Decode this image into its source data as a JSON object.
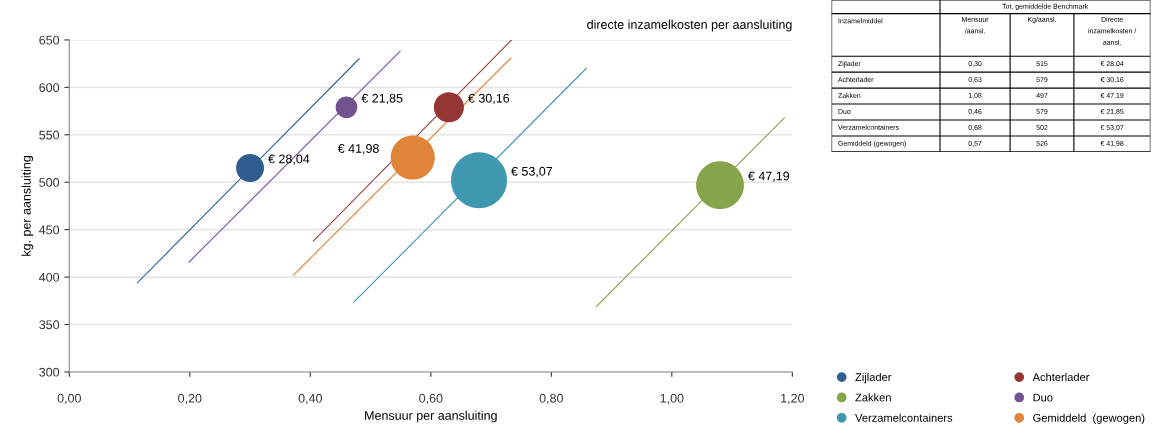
{
  "chart_data": [
    {
      "type": "bubble",
      "title": "directe inzamelkosten per aansluiting",
      "xlabel": "Mensuur per aansluiting",
      "ylabel": "kg. per aansluiting",
      "xlim": [
        0,
        1.2
      ],
      "xticks": [
        {
          "value": 0,
          "label": "0,00"
        },
        {
          "value": 0.2,
          "label": "0,20"
        },
        {
          "value": 0.4,
          "label": "0,40"
        },
        {
          "value": 0.6,
          "label": "0,60"
        },
        {
          "value": 0.8,
          "label": "0,80"
        },
        {
          "value": 1.0,
          "label": "1,00"
        },
        {
          "value": 1.2,
          "label": "1,20"
        }
      ],
      "ylim": [
        300,
        650
      ],
      "yticks": [
        300,
        350,
        400,
        450,
        500,
        550,
        600,
        650
      ],
      "grid": "y",
      "legend": "bottom right",
      "annotations": [
        {
          "text": "€ 28,04",
          "x": 0.3,
          "y": 515
        },
        {
          "text": "€ 30,16",
          "x": 0.63,
          "y": 579
        },
        {
          "text": "€ 47,19",
          "x": 1.08,
          "y": 497
        },
        {
          "text": "€ 21,85",
          "x": 0.46,
          "y": 579
        },
        {
          "text": "€ 53,07",
          "x": 0.68,
          "y": 502
        },
        {
          "text": "€ 41,98",
          "x": 0.57,
          "y": 526
        }
      ],
      "series": [
        {
          "name": "Zijlader",
          "color": "#2f5d8f",
          "x": [
            0.3
          ],
          "values": [
            515
          ],
          "sizes": [
            0.25
          ]
        },
        {
          "name": "Achterlader",
          "color": "#943634",
          "x": [
            0.63
          ],
          "values": [
            579
          ],
          "sizes": [
            0.29
          ]
        },
        {
          "name": "Zakken",
          "color": "#86a44b",
          "x": [
            1.08
          ],
          "values": [
            497
          ],
          "sizes": [
            0.73
          ]
        },
        {
          "name": "Duo",
          "color": "#70538f",
          "x": [
            0.46
          ],
          "values": [
            579
          ],
          "sizes": [
            0.15
          ]
        },
        {
          "name": "Verzamelcontainers",
          "color": "#3f98b0",
          "x": [
            0.68
          ],
          "values": [
            502
          ],
          "sizes": [
            1.0
          ]
        },
        {
          "name": "Gemiddeld  (gewogen)",
          "color": "#e0843a",
          "x": [
            0.57
          ],
          "values": [
            526
          ],
          "sizes": [
            0.62
          ]
        },
        {
          "type": "line",
          "color": "#2f5d8f",
          "x": [
            0.113,
            0.481
          ],
          "values": [
            394,
            630
          ]
        },
        {
          "type": "line",
          "color": "#943634",
          "x": [
            0.405,
            0.734
          ],
          "values": [
            438,
            650
          ]
        },
        {
          "type": "line",
          "color": "#86a44b",
          "x": [
            0.875,
            1.187
          ],
          "values": [
            369,
            568
          ]
        },
        {
          "type": "line",
          "color": "#70538f",
          "x": [
            0.199,
            0.549
          ],
          "values": [
            416,
            638
          ]
        },
        {
          "type": "line",
          "color": "#3f98b0",
          "x": [
            0.473,
            0.858
          ],
          "values": [
            374,
            620
          ]
        },
        {
          "type": "line",
          "color": "#e0843a",
          "x": [
            0.372,
            0.733
          ],
          "values": [
            402,
            631
          ]
        }
      ]
    },
    {
      "type": "other",
      "title": "Tot. gemiddelde Benchmark",
      "categories": [
        "Inzamelmiddel",
        "Mensuur /aansl.",
        "Kg/aansl.",
        "Directe inzamelkosten / aansl."
      ],
      "y_categories": [
        "Zijlader",
        "Achterlader",
        "Zakken",
        "Duo",
        "Verzamelcontainers",
        "Gemiddeld (gewogen)"
      ],
      "cell_labels": [
        [
          "0,30",
          "515",
          "€ 28,04"
        ],
        [
          "0,63",
          "579",
          "€ 30,16"
        ],
        [
          "1,08",
          "497",
          "€ 47,19"
        ],
        [
          "0,46",
          "579",
          "€ 21,85"
        ],
        [
          "0,68",
          "502",
          "€ 53,07"
        ],
        [
          "0,57",
          "526",
          "€ 41,98"
        ]
      ]
    }
  ]
}
